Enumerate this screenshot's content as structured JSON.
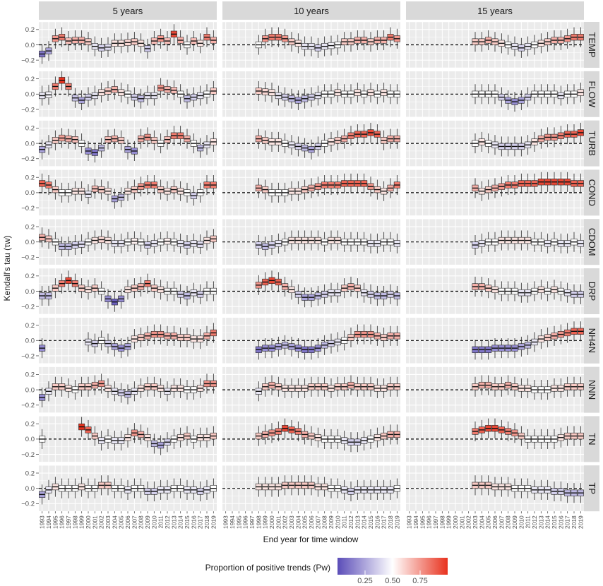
{
  "chart_data": {
    "type": "boxplot",
    "facet_columns": [
      "5 years",
      "10 years",
      "15 years"
    ],
    "facet_rows": [
      "TEMP",
      "FLOW",
      "TURB",
      "COND",
      "CDOM",
      "DRP",
      "NH4N",
      "NNN",
      "TN",
      "TP"
    ],
    "ylabel": "Kendall's tau (τw)",
    "xlabel": "End year for time window",
    "ylim": [
      -0.3,
      0.3
    ],
    "y_ticks": [
      "0.2",
      "0.0",
      "−0.2"
    ],
    "x_tick_labels": [
      "1993",
      "1994",
      "1995",
      "1996",
      "1997",
      "1998",
      "1999",
      "2000",
      "2001",
      "2002",
      "2003",
      "2004",
      "2005",
      "2006",
      "2007",
      "2008",
      "2009",
      "2010",
      "2011",
      "2012",
      "2013",
      "2014",
      "2015",
      "2016",
      "2017",
      "2018",
      "2019"
    ],
    "reference_line": 0,
    "legend": {
      "title": "Proportion of positive trends (Pw)",
      "ticks": [
        "0.25",
        "0.50",
        "0.75"
      ],
      "colors": [
        "#5b4db8",
        "#ffffff",
        "#e8321e"
      ]
    },
    "medians": {
      "5 years": {
        "TEMP": [
          -0.12,
          -0.08,
          0.08,
          0.1,
          0.05,
          0.06,
          0.06,
          0.04,
          -0.02,
          -0.04,
          -0.03,
          0.02,
          0.02,
          0.03,
          0.04,
          0.02,
          -0.05,
          0.05,
          0.08,
          0.05,
          0.14,
          0.06,
          0.0,
          0.05,
          0.02,
          0.1,
          0.06
        ],
        "FLOW": [
          -0.02,
          -0.01,
          0.1,
          0.18,
          0.1,
          -0.05,
          -0.08,
          -0.04,
          -0.02,
          0.02,
          0.04,
          0.06,
          0.02,
          0.0,
          -0.04,
          -0.06,
          -0.02,
          -0.02,
          0.08,
          0.06,
          0.05,
          0.0,
          -0.06,
          -0.04,
          -0.02,
          0.0,
          0.04
        ],
        "TURB": [
          -0.08,
          -0.02,
          0.04,
          0.07,
          0.06,
          0.05,
          0.0,
          -0.1,
          -0.12,
          -0.06,
          0.05,
          0.06,
          0.04,
          -0.08,
          -0.1,
          0.06,
          0.08,
          0.04,
          0.0,
          0.05,
          0.1,
          0.1,
          0.06,
          0.0,
          -0.06,
          -0.02,
          0.02
        ],
        "COND": [
          0.12,
          0.1,
          0.04,
          0.0,
          0.0,
          0.02,
          0.02,
          -0.02,
          0.05,
          0.04,
          0.02,
          -0.08,
          -0.06,
          0.02,
          0.04,
          0.08,
          0.1,
          0.1,
          0.04,
          0.02,
          0.04,
          0.02,
          0.0,
          -0.04,
          0.0,
          0.1,
          0.1
        ],
        "CDOM": [
          0.06,
          0.04,
          0.0,
          -0.06,
          -0.06,
          -0.04,
          -0.03,
          0.0,
          0.02,
          0.03,
          0.02,
          -0.02,
          -0.02,
          0.0,
          0.01,
          0.0,
          -0.04,
          -0.02,
          0.0,
          0.01,
          0.0,
          -0.02,
          -0.04,
          -0.02,
          -0.03,
          0.02,
          0.04
        ],
        "DRP": [
          -0.06,
          -0.06,
          0.04,
          0.1,
          0.14,
          0.1,
          0.04,
          0.02,
          0.04,
          0.0,
          -0.1,
          -0.14,
          -0.1,
          0.02,
          0.04,
          0.06,
          0.1,
          0.04,
          0.02,
          0.0,
          0.0,
          -0.04,
          -0.06,
          -0.02,
          -0.04,
          0.0,
          0.0
        ],
        "NH4N": [
          -0.1,
          null,
          null,
          null,
          null,
          null,
          null,
          -0.02,
          -0.04,
          0.0,
          -0.04,
          -0.08,
          -0.1,
          -0.08,
          0.02,
          0.04,
          0.06,
          0.08,
          0.08,
          0.06,
          0.06,
          0.04,
          0.04,
          0.02,
          0.02,
          0.06,
          0.1
        ],
        "NNN": [
          -0.1,
          -0.02,
          0.04,
          0.04,
          0.02,
          0.0,
          0.04,
          0.04,
          0.06,
          0.08,
          0.02,
          -0.02,
          -0.04,
          -0.06,
          -0.02,
          0.02,
          0.04,
          0.04,
          0.02,
          -0.02,
          0.02,
          0.02,
          0.0,
          0.0,
          0.02,
          0.08,
          0.08
        ],
        "TN": [
          0.0,
          null,
          null,
          null,
          null,
          null,
          0.16,
          0.12,
          0.04,
          -0.02,
          0.0,
          -0.02,
          -0.02,
          0.02,
          0.08,
          0.06,
          0.02,
          -0.06,
          -0.08,
          -0.04,
          0.0,
          0.02,
          0.04,
          0.0,
          0.02,
          0.02,
          0.04
        ],
        "TP": [
          -0.08,
          -0.02,
          0.02,
          0.0,
          0.0,
          0.0,
          0.02,
          0.0,
          0.0,
          0.04,
          0.04,
          0.0,
          0.0,
          -0.02,
          0.0,
          0.0,
          -0.04,
          -0.04,
          -0.02,
          -0.02,
          0.0,
          0.0,
          -0.02,
          -0.02,
          -0.04,
          -0.02,
          0.0
        ]
      },
      "10 years": {
        "TEMP": [
          null,
          null,
          null,
          null,
          null,
          0.0,
          0.08,
          0.1,
          0.1,
          0.08,
          0.04,
          0.02,
          -0.02,
          -0.02,
          -0.04,
          -0.02,
          -0.01,
          0.0,
          0.04,
          0.04,
          0.06,
          0.06,
          0.04,
          0.06,
          0.06,
          0.1,
          0.08
        ],
        "FLOW": [
          null,
          null,
          null,
          null,
          null,
          0.04,
          0.03,
          0.02,
          -0.02,
          -0.04,
          -0.06,
          -0.08,
          -0.06,
          -0.04,
          -0.02,
          0.0,
          0.0,
          0.02,
          0.0,
          0.0,
          0.02,
          0.0,
          0.02,
          0.0,
          0.02,
          0.0,
          0.0
        ],
        "TURB": [
          null,
          null,
          null,
          null,
          null,
          0.06,
          0.04,
          0.02,
          0.02,
          0.0,
          -0.02,
          -0.04,
          -0.06,
          -0.08,
          -0.04,
          0.0,
          0.02,
          0.04,
          0.06,
          0.1,
          0.12,
          0.12,
          0.14,
          0.12,
          0.04,
          0.06,
          0.06
        ],
        "COND": [
          null,
          null,
          null,
          null,
          null,
          0.06,
          0.04,
          0.0,
          0.0,
          0.0,
          0.02,
          0.02,
          0.04,
          0.06,
          0.08,
          0.1,
          0.1,
          0.1,
          0.12,
          0.12,
          0.12,
          0.12,
          0.08,
          0.04,
          0.02,
          0.06,
          0.1
        ],
        "CDOM": [
          null,
          null,
          null,
          null,
          null,
          -0.04,
          -0.06,
          -0.04,
          -0.02,
          0.0,
          0.02,
          0.02,
          0.02,
          0.02,
          0.02,
          0.0,
          0.02,
          0.02,
          0.0,
          0.0,
          0.0,
          0.0,
          -0.02,
          -0.02,
          0.0,
          0.0,
          -0.02
        ],
        "DRP": [
          null,
          null,
          null,
          null,
          null,
          0.08,
          0.12,
          0.14,
          0.12,
          0.06,
          0.02,
          -0.04,
          -0.08,
          -0.08,
          -0.06,
          -0.04,
          -0.02,
          -0.02,
          0.04,
          0.06,
          0.04,
          -0.02,
          -0.04,
          -0.06,
          -0.06,
          -0.04,
          -0.06
        ],
        "NH4N": [
          null,
          null,
          null,
          null,
          null,
          -0.12,
          -0.1,
          -0.1,
          -0.08,
          -0.06,
          -0.08,
          -0.1,
          -0.12,
          -0.12,
          -0.1,
          -0.06,
          -0.04,
          -0.02,
          0.0,
          0.04,
          0.08,
          0.08,
          0.08,
          0.06,
          0.04,
          0.06,
          0.06
        ],
        "NNN": [
          null,
          null,
          null,
          null,
          null,
          -0.02,
          0.04,
          0.06,
          0.04,
          0.02,
          0.02,
          0.02,
          0.02,
          0.04,
          0.04,
          0.04,
          0.02,
          0.04,
          0.04,
          0.06,
          0.04,
          0.04,
          0.04,
          0.02,
          0.02,
          0.04,
          0.04
        ],
        "TN": [
          null,
          null,
          null,
          null,
          null,
          0.04,
          0.06,
          0.08,
          0.1,
          0.14,
          0.12,
          0.1,
          0.06,
          0.04,
          0.02,
          0.0,
          0.0,
          0.0,
          -0.02,
          -0.04,
          -0.04,
          -0.02,
          0.0,
          0.02,
          0.04,
          0.06,
          0.06
        ],
        "TP": [
          null,
          null,
          null,
          null,
          null,
          0.02,
          0.02,
          0.02,
          0.02,
          0.04,
          0.04,
          0.04,
          0.04,
          0.04,
          0.02,
          0.02,
          0.0,
          0.0,
          -0.02,
          -0.04,
          -0.02,
          -0.02,
          -0.02,
          -0.02,
          -0.02,
          -0.02,
          0.0
        ]
      },
      "15 years": {
        "TEMP": [
          null,
          null,
          null,
          null,
          null,
          null,
          null,
          null,
          null,
          null,
          0.04,
          0.04,
          0.06,
          0.04,
          0.02,
          0.0,
          -0.02,
          -0.04,
          -0.02,
          0.0,
          0.02,
          0.04,
          0.06,
          0.06,
          0.08,
          0.1,
          0.1
        ],
        "FLOW": [
          null,
          null,
          null,
          null,
          null,
          null,
          null,
          null,
          null,
          null,
          0.0,
          0.0,
          0.0,
          0.0,
          -0.04,
          -0.08,
          -0.1,
          -0.08,
          -0.04,
          0.0,
          0.0,
          0.0,
          0.0,
          -0.02,
          0.0,
          0.0,
          0.02
        ],
        "TURB": [
          null,
          null,
          null,
          null,
          null,
          null,
          null,
          null,
          null,
          null,
          0.0,
          0.02,
          0.0,
          -0.02,
          -0.04,
          -0.04,
          -0.04,
          -0.04,
          -0.02,
          0.02,
          0.06,
          0.08,
          0.08,
          0.1,
          0.12,
          0.12,
          0.14
        ],
        "COND": [
          null,
          null,
          null,
          null,
          null,
          null,
          null,
          null,
          null,
          null,
          0.06,
          0.02,
          0.04,
          0.06,
          0.08,
          0.1,
          0.1,
          0.12,
          0.12,
          0.12,
          0.14,
          0.14,
          0.14,
          0.14,
          0.14,
          0.12,
          0.12
        ],
        "CDOM": [
          null,
          null,
          null,
          null,
          null,
          null,
          null,
          null,
          null,
          null,
          -0.04,
          -0.02,
          0.0,
          0.0,
          0.02,
          0.02,
          0.02,
          0.02,
          0.02,
          0.0,
          0.0,
          -0.02,
          0.0,
          -0.02,
          -0.02,
          0.0,
          -0.02
        ],
        "DRP": [
          null,
          null,
          null,
          null,
          null,
          null,
          null,
          null,
          null,
          null,
          0.06,
          0.06,
          0.04,
          0.02,
          0.0,
          0.0,
          0.0,
          -0.02,
          -0.02,
          0.0,
          0.02,
          0.0,
          0.02,
          0.0,
          -0.02,
          -0.04,
          -0.04
        ],
        "NH4N": [
          null,
          null,
          null,
          null,
          null,
          null,
          null,
          null,
          null,
          null,
          -0.12,
          -0.12,
          -0.12,
          -0.1,
          -0.1,
          -0.1,
          -0.1,
          -0.08,
          -0.06,
          -0.02,
          0.02,
          0.04,
          0.06,
          0.08,
          0.1,
          0.12,
          0.12
        ],
        "NNN": [
          null,
          null,
          null,
          null,
          null,
          null,
          null,
          null,
          null,
          null,
          0.04,
          0.06,
          0.06,
          0.04,
          0.04,
          0.06,
          0.04,
          0.02,
          0.02,
          0.0,
          0.0,
          0.0,
          0.02,
          0.02,
          0.04,
          0.04,
          0.04
        ],
        "TN": [
          null,
          null,
          null,
          null,
          null,
          null,
          null,
          null,
          null,
          null,
          0.1,
          0.12,
          0.14,
          0.14,
          0.12,
          0.1,
          0.08,
          0.04,
          0.0,
          0.0,
          0.0,
          0.0,
          0.0,
          0.02,
          0.04,
          0.04,
          0.04
        ],
        "TP": [
          null,
          null,
          null,
          null,
          null,
          null,
          null,
          null,
          null,
          null,
          0.04,
          0.04,
          0.04,
          0.02,
          0.02,
          0.02,
          0.0,
          0.0,
          0.0,
          -0.02,
          -0.02,
          -0.02,
          -0.04,
          -0.04,
          -0.06,
          -0.06,
          -0.06
        ]
      }
    }
  }
}
